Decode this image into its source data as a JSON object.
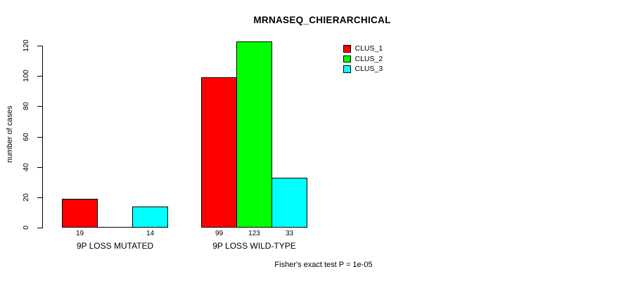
{
  "chart_data": {
    "type": "bar",
    "title": "MRNASEQ_CHIERARCHICAL",
    "ylabel": "number of cases",
    "xlabel": "",
    "categories": [
      "9P LOSS MUTATED",
      "9P LOSS WILD-TYPE"
    ],
    "series": [
      {
        "name": "CLUS_1",
        "color": "#ff0000",
        "values": [
          19,
          99
        ]
      },
      {
        "name": "CLUS_2",
        "color": "#00ff00",
        "values": [
          0,
          123
        ]
      },
      {
        "name": "CLUS_3",
        "color": "#00ffff",
        "values": [
          14,
          33
        ]
      }
    ],
    "bar_value_labels_shown": [
      "19",
      "14",
      "99",
      "123",
      "33"
    ],
    "y_ticks": [
      0,
      20,
      40,
      60,
      80,
      100,
      120
    ],
    "ylim": [
      0,
      123
    ],
    "grid": false,
    "legend": {
      "position": "top-right",
      "boxed": false
    },
    "annotation": "Fisher's exact test P = 1e-05"
  }
}
